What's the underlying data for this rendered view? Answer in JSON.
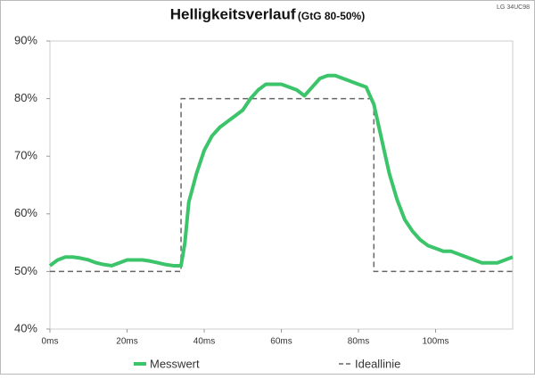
{
  "chart_data": {
    "type": "line",
    "title": "Helligkeitsverlauf",
    "subtitle": "(GtG 80-50%)",
    "note": "LG 34UC98",
    "xlim": [
      0,
      120
    ],
    "ylim": [
      40,
      90
    ],
    "xticks": [
      {
        "value": 0,
        "label": "0ms"
      },
      {
        "value": 20,
        "label": "20ms"
      },
      {
        "value": 40,
        "label": "40ms"
      },
      {
        "value": 60,
        "label": "60ms"
      },
      {
        "value": 80,
        "label": "80ms"
      },
      {
        "value": 100,
        "label": "100ms"
      }
    ],
    "yticks": [
      {
        "value": 40,
        "label": "40%"
      },
      {
        "value": 50,
        "label": "50%"
      },
      {
        "value": 60,
        "label": "60%"
      },
      {
        "value": 70,
        "label": "70%"
      },
      {
        "value": 80,
        "label": "80%"
      },
      {
        "value": 90,
        "label": "90%"
      }
    ],
    "grid": false,
    "series": [
      {
        "name": "Messwert",
        "color": "#3cc46a",
        "dash": false,
        "x": [
          0,
          2,
          4,
          6,
          8,
          10,
          12,
          14,
          16,
          18,
          20,
          22,
          24,
          26,
          28,
          30,
          32,
          34,
          35,
          36,
          38,
          40,
          42,
          44,
          46,
          48,
          50,
          52,
          54,
          56,
          58,
          60,
          62,
          64,
          66,
          68,
          70,
          72,
          74,
          76,
          78,
          80,
          82,
          84,
          86,
          88,
          90,
          92,
          94,
          96,
          98,
          100,
          102,
          104,
          106,
          108,
          110,
          112,
          114,
          116,
          118,
          120
        ],
        "values": [
          51,
          52,
          52.5,
          52.5,
          52.3,
          52,
          51.5,
          51.2,
          51,
          51.5,
          52,
          52,
          52,
          51.8,
          51.5,
          51.2,
          51,
          51,
          55,
          62,
          67,
          71,
          73.5,
          75,
          76,
          77,
          78,
          80,
          81.5,
          82.5,
          82.5,
          82.5,
          82,
          81.5,
          80.5,
          82,
          83.5,
          84,
          84,
          83.5,
          83,
          82.5,
          82,
          79,
          73,
          67,
          62.5,
          59,
          57,
          55.5,
          54.5,
          54,
          53.5,
          53.5,
          53,
          52.5,
          52,
          51.5,
          51.5,
          51.5,
          52,
          52.5
        ]
      },
      {
        "name": "Ideallinie",
        "color": "#666666",
        "dash": true,
        "x": [
          0,
          34,
          34,
          84,
          84,
          120
        ],
        "values": [
          50,
          50,
          80,
          80,
          50,
          50
        ]
      }
    ]
  }
}
